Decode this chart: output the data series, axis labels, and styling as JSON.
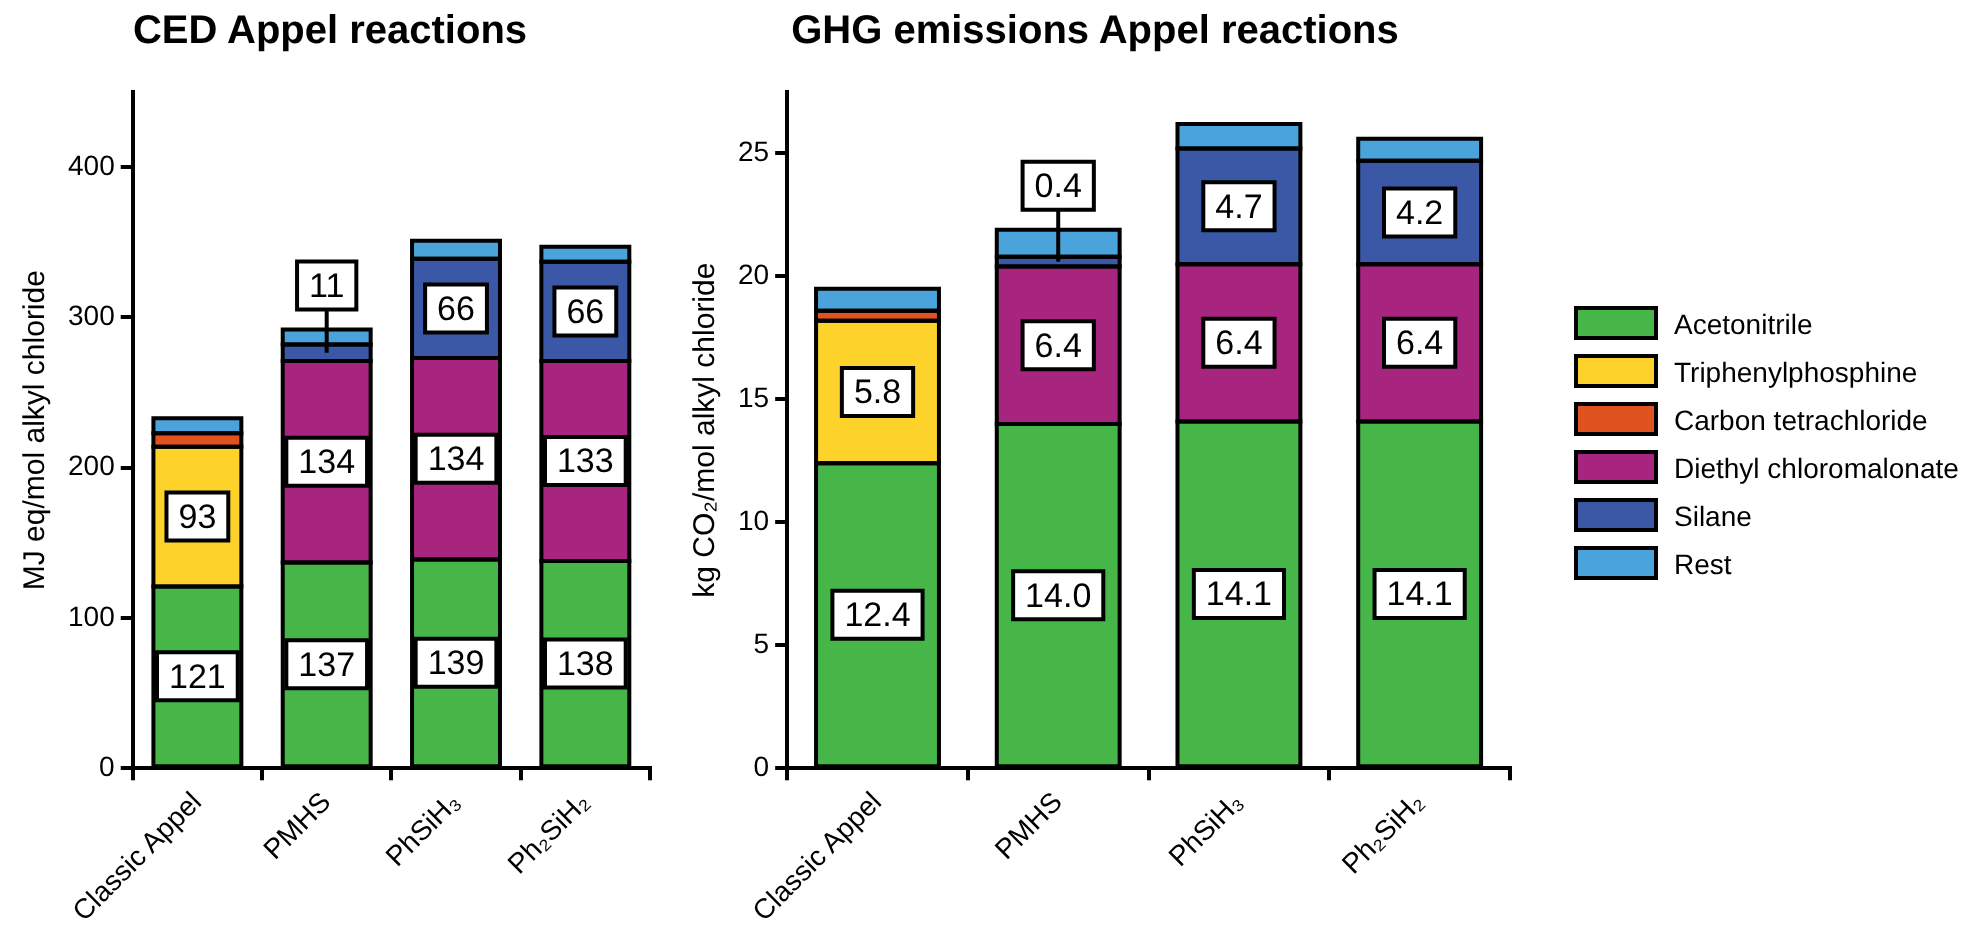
{
  "chart_data": [
    {
      "type": "bar",
      "title": "CED Appel reactions",
      "ylabel": "MJ eq/mol alkyl chloride",
      "stacked": true,
      "grid": false,
      "legend": false,
      "categories": [
        "Classic Appel",
        "PMHS",
        "PhSiH₃",
        "Ph₂SiH₂"
      ],
      "ylim": [
        0,
        450
      ],
      "yticks": [
        0,
        100,
        200,
        300,
        400
      ],
      "series": [
        {
          "color": "#46b649",
          "values": [
            121,
            137,
            139,
            138
          ],
          "value_labels": [
            "121",
            "137",
            "139",
            "138"
          ]
        },
        {
          "color": "#fdd22a",
          "values": [
            93,
            0,
            0,
            0
          ],
          "value_labels": [
            "93",
            null,
            null,
            null
          ]
        },
        {
          "color": "#e0521f",
          "values": [
            9,
            0,
            0,
            0
          ],
          "value_labels": [
            null,
            null,
            null,
            null
          ]
        },
        {
          "color": "#a7247f",
          "values": [
            0,
            134,
            134,
            133
          ],
          "value_labels": [
            null,
            "134",
            "134",
            "133"
          ]
        },
        {
          "color": "#3a58a6",
          "values": [
            0,
            11,
            66,
            66
          ],
          "value_labels": [
            null,
            "11",
            "66",
            "66"
          ]
        },
        {
          "color": "#4aa3db",
          "values": [
            10,
            10,
            12,
            10
          ],
          "value_labels": [
            null,
            null,
            null,
            null
          ]
        }
      ]
    },
    {
      "type": "bar",
      "title": "GHG emissions Appel reactions",
      "ylabel": "kg CO₂/mol alkyl chloride",
      "stacked": true,
      "grid": false,
      "legend": "right",
      "categories": [
        "Classic Appel",
        "PMHS",
        "PhSiH₃",
        "Ph₂SiH₂"
      ],
      "ylim": [
        0,
        27.5
      ],
      "yticks": [
        0,
        5,
        10,
        15,
        20,
        25
      ],
      "series": [
        {
          "name": "Acetonitrile",
          "color": "#46b649",
          "values": [
            12.4,
            14.0,
            14.1,
            14.1
          ],
          "value_labels": [
            "12.4",
            "14.0",
            "14.1",
            "14.1"
          ]
        },
        {
          "name": "Triphenylphosphine",
          "color": "#fdd22a",
          "values": [
            5.8,
            0,
            0,
            0
          ],
          "value_labels": [
            "5.8",
            null,
            null,
            null
          ]
        },
        {
          "name": "Carbon tetrachloride",
          "color": "#e0521f",
          "values": [
            0.4,
            0,
            0,
            0
          ],
          "value_labels": [
            null,
            null,
            null,
            null
          ]
        },
        {
          "name": "Diethyl chloromalonate",
          "color": "#a7247f",
          "values": [
            0,
            6.4,
            6.4,
            6.4
          ],
          "value_labels": [
            null,
            "6.4",
            "6.4",
            "6.4"
          ]
        },
        {
          "name": "Silane",
          "color": "#3a58a6",
          "values": [
            0,
            0.4,
            4.7,
            4.2
          ],
          "value_labels": [
            null,
            "0.4",
            "4.7",
            "4.2"
          ]
        },
        {
          "name": "Rest",
          "color": "#4aa3db",
          "values": [
            0.9,
            1.1,
            1.0,
            0.9
          ],
          "value_labels": [
            null,
            null,
            null,
            null
          ]
        }
      ]
    }
  ]
}
